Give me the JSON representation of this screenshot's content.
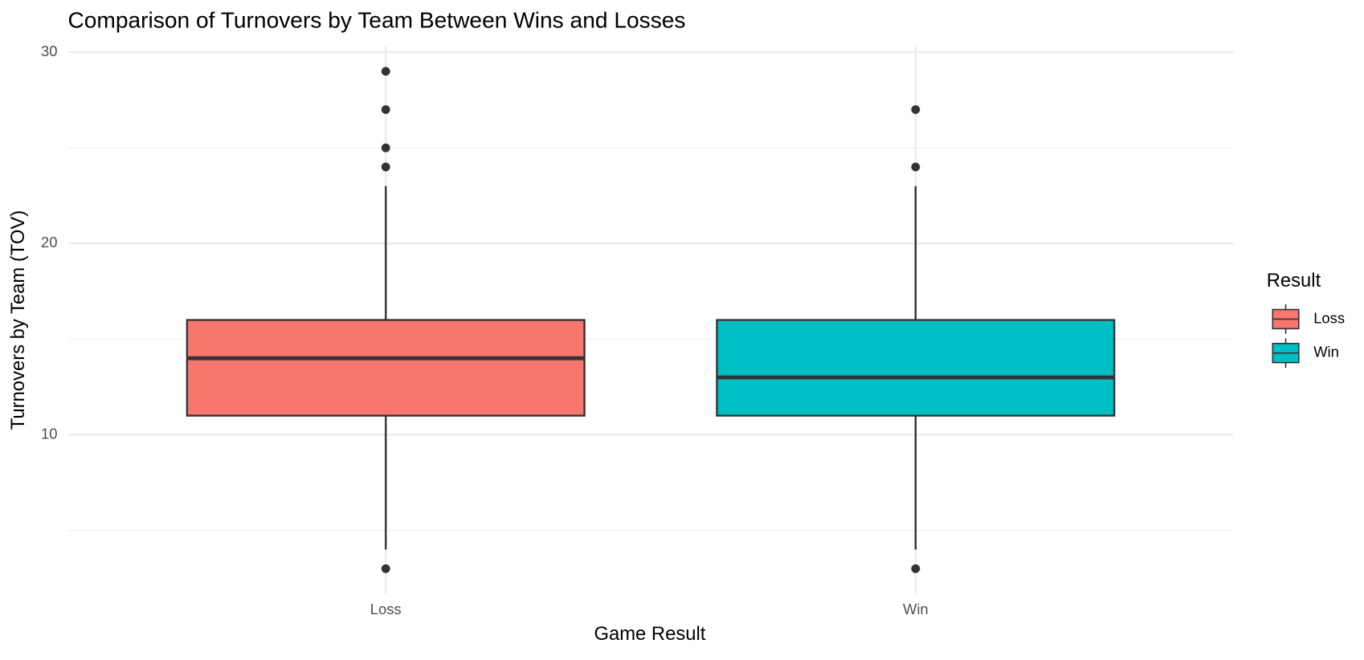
{
  "chart_data": {
    "type": "boxplot",
    "title": "Comparison of Turnovers by Team Between Wins and Losses",
    "x_label": "Game Result",
    "y_label": "Turnovers by Team (TOV)",
    "legend_title": "Result",
    "legend_position": "right",
    "categories": [
      "Loss",
      "Win"
    ],
    "boxes": [
      {
        "name": "Loss",
        "color": "#F8766D",
        "whisker_low": 4,
        "q1": 11,
        "median": 14,
        "q3": 16,
        "whisker_high": 23,
        "outliers": [
          3,
          24,
          25,
          27,
          29
        ]
      },
      {
        "name": "Win",
        "color": "#00BFC4",
        "whisker_low": 4,
        "q1": 11,
        "median": 13,
        "q3": 16,
        "whisker_high": 23,
        "outliers": [
          3,
          24,
          27
        ]
      }
    ],
    "ylim": [
      1.7,
      30.3
    ],
    "yticks": [
      10,
      20,
      30
    ],
    "minor_yticks": [
      5,
      15,
      25
    ],
    "grid": true
  }
}
